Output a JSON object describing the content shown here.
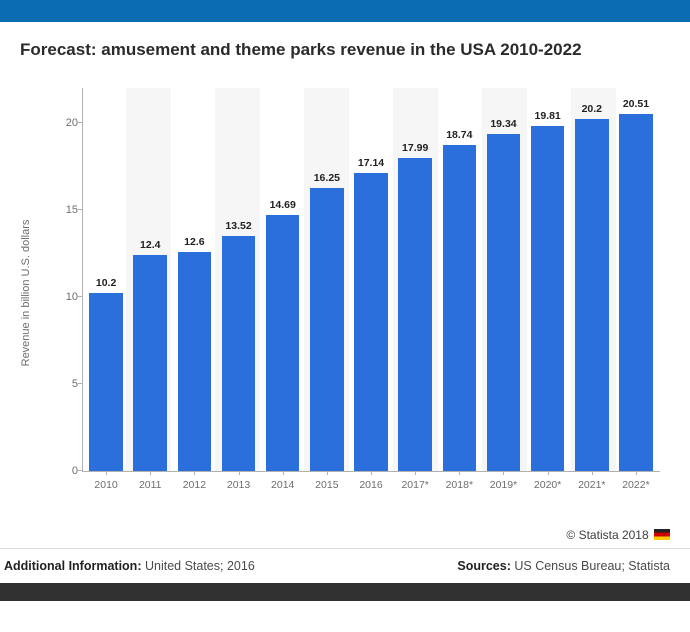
{
  "header": {
    "top_bar_color": "#0b6cb3"
  },
  "chart": {
    "type": "bar",
    "title": "Forecast: amusement and theme parks revenue in the USA 2010-2022",
    "title_fontsize": 17,
    "ylabel": "Revenue in billion U.S. dollars",
    "label_fontsize": 11,
    "ylim": [
      0,
      22
    ],
    "yticks": [
      0,
      5,
      10,
      15,
      20
    ],
    "categories": [
      "2010",
      "2011",
      "2012",
      "2013",
      "2014",
      "2015",
      "2016",
      "2017*",
      "2018*",
      "2019*",
      "2020*",
      "2021*",
      "2022*"
    ],
    "values": [
      10.2,
      12.4,
      12.6,
      13.52,
      14.69,
      16.25,
      17.14,
      17.99,
      18.74,
      19.34,
      19.81,
      20.2,
      20.51
    ],
    "value_labels": [
      "10.2",
      "12.4",
      "12.6",
      "13.52",
      "14.69",
      "16.25",
      "17.14",
      "17.99",
      "18.74",
      "19.34",
      "19.81",
      "20.2",
      "20.51"
    ],
    "bar_color": "#2a6fdb",
    "background_color": "#ffffff",
    "stripe_color": "#f6f6f6",
    "axis_color": "#b0b0b0",
    "tick_font_color": "#6d6d6d",
    "bar_width_ratio": 0.76,
    "stripe_on_odd": true
  },
  "footer": {
    "credit_prefix": "© Statista 2018",
    "additional_label": "Additional Information:",
    "additional_value": "United States; 2016",
    "sources_label": "Sources:",
    "sources_value": "US Census Bureau; Statista",
    "bottom_bar_color": "#313131"
  }
}
